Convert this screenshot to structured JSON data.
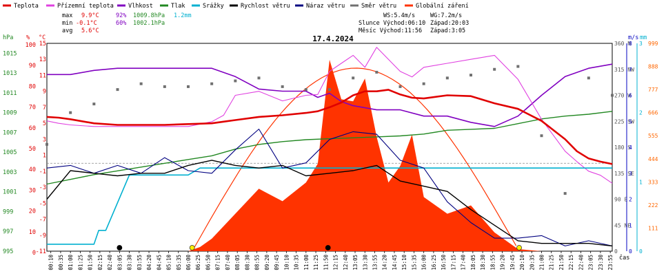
{
  "colors": {
    "temperature": "#e00000",
    "feels_like": "#e040e0",
    "humidity": "#8000c0",
    "pressure": "#228822",
    "rain": "#00b0d0",
    "wind_speed": "#000000",
    "wind_gust": "#000080",
    "wind_dir": "#707070",
    "radiation": "#ff3300",
    "axis_percent": "#e00000",
    "axis_hpa": "#228822",
    "axis_ms": "#0000c0",
    "axis_mm": "#00b0d0",
    "axis_wm2": "#ff6600"
  },
  "legend": [
    {
      "key": "temperature",
      "label": "Teplota"
    },
    {
      "key": "feels_like",
      "label": "Přízemní teplota"
    },
    {
      "key": "humidity",
      "label": "Vlhkost"
    },
    {
      "key": "pressure",
      "label": "Tlak"
    },
    {
      "key": "rain",
      "label": "Srážky"
    },
    {
      "key": "wind_speed",
      "label": "Rychlost větru"
    },
    {
      "key": "wind_gust",
      "label": "Náraz větru"
    },
    {
      "key": "wind_dir",
      "label": "Směr větru"
    },
    {
      "key": "radiation",
      "label": "Globální záření"
    }
  ],
  "stats": {
    "max_label": "max",
    "max_temp": "9.9°C",
    "max_hum": "92%",
    "max_press": "1009.8hPa",
    "rain_total": "1.2mm",
    "min_label": "min",
    "min_temp": "-0.1°C",
    "min_hum": "60%",
    "min_press": "1002.1hPa",
    "avg_label": "avg",
    "avg_temp": "5.6°C"
  },
  "sun": {
    "ws": "WS:5.4m/s",
    "wg": "WG:7.2m/s",
    "slunce": "Slunce Východ:06:10",
    "slunce_z": "Západ:20:03",
    "mesic": "Měsíc  Východ:11:56",
    "mesic_z": "Západ:3:05"
  },
  "chart_data": {
    "type": "line",
    "title": "17.4.2024",
    "x_label": "čas",
    "x_ticks": [
      "00:10",
      "00:35",
      "01:00",
      "01:25",
      "01:50",
      "02:15",
      "02:40",
      "03:05",
      "03:30",
      "03:55",
      "04:20",
      "04:45",
      "05:10",
      "05:35",
      "06:00",
      "06:25",
      "06:50",
      "07:15",
      "07:40",
      "08:05",
      "08:30",
      "08:55",
      "09:20",
      "09:45",
      "10:10",
      "10:35",
      "11:00",
      "11:25",
      "11:50",
      "12:15",
      "12:40",
      "13:05",
      "13:30",
      "13:55",
      "14:20",
      "14:45",
      "15:10",
      "15:35",
      "16:00",
      "16:25",
      "16:50",
      "17:15",
      "17:40",
      "18:05",
      "18:30",
      "18:55",
      "19:20",
      "19:45",
      "20:10",
      "20:35",
      "21:00",
      "21:25",
      "21:50",
      "22:15",
      "22:40",
      "23:05",
      "23:30",
      "23:55"
    ],
    "x_range_hours": [
      0,
      24
    ],
    "axes": {
      "hpa": {
        "label": "hPa",
        "range": [
          995,
          1017
        ],
        "ticks": [
          "995",
          "997",
          "999",
          "1001",
          "1003",
          "1005",
          "1007",
          "1009",
          "1011",
          "1013",
          "1015"
        ]
      },
      "percent": {
        "label": "%",
        "range": [
          0,
          100
        ],
        "ticks": [
          "0",
          "10",
          "20",
          "30",
          "40",
          "50",
          "60",
          "70",
          "80",
          "90",
          "100"
        ]
      },
      "celsius": {
        "label": "°C",
        "range": [
          -11,
          15
        ],
        "ticks": [
          "-11",
          "-9",
          "-7",
          "-5",
          "-3",
          "-1",
          "1",
          "3",
          "5",
          "7",
          "9",
          "11",
          "13",
          "15"
        ]
      },
      "wind_ms": {
        "label": "m/s",
        "range": [
          0,
          8
        ],
        "ticks": [
          "0",
          "1",
          "2",
          "3",
          "4",
          "5",
          "6",
          "7",
          "8"
        ]
      },
      "rain_mm": {
        "label": "mm",
        "range": [
          0,
          3
        ],
        "ticks": [
          "0",
          "1",
          "2",
          "3"
        ]
      },
      "wm2": {
        "label": "",
        "range": [
          0,
          999
        ],
        "ticks": [
          "111",
          "222",
          "333",
          "444",
          "555",
          "666",
          "777",
          "888",
          "999"
        ]
      },
      "wind_dir": {
        "ticks": [
          "0",
          "45 NE",
          "90 E",
          "135 SE",
          "180 S",
          "225 SW",
          "270 W",
          "315 NW",
          "360 N"
        ]
      }
    },
    "series": [
      {
        "name": "Teplota",
        "axis": "celsius",
        "x": [
          0,
          0.5,
          1,
          2,
          3,
          4,
          5,
          6,
          7,
          7.5,
          8,
          9,
          10,
          11,
          11.5,
          12,
          12.5,
          13,
          13.5,
          14,
          14.5,
          15,
          15.5,
          16,
          17,
          18,
          19,
          20,
          21,
          22,
          22.5,
          23,
          23.5,
          24
        ],
        "y": [
          5.8,
          5.7,
          5.5,
          5.0,
          4.8,
          4.8,
          4.8,
          4.9,
          5.0,
          5.2,
          5.4,
          5.8,
          6.0,
          6.3,
          6.5,
          7.0,
          7.6,
          8.5,
          9.0,
          9.0,
          9.2,
          8.6,
          8.2,
          8.1,
          8.5,
          8.4,
          7.5,
          6.8,
          5.3,
          3.0,
          1.5,
          0.6,
          0.2,
          -0.1
        ]
      },
      {
        "name": "Přízemní teplota",
        "axis": "celsius",
        "x": [
          0,
          0.5,
          1,
          2,
          3,
          4,
          5,
          6,
          7,
          7.5,
          8,
          9,
          10,
          11,
          11.5,
          12,
          12.5,
          13,
          13.5,
          14,
          14.5,
          15,
          15.5,
          16,
          17,
          18,
          19,
          20,
          21,
          22,
          22.5,
          23,
          23.5,
          24
        ],
        "y": [
          5.3,
          5.0,
          4.8,
          4.6,
          4.6,
          4.6,
          4.6,
          4.6,
          5.2,
          6.0,
          8.5,
          9.0,
          7.8,
          8.5,
          8.6,
          11.5,
          12.5,
          13.5,
          12.0,
          14.5,
          13.0,
          11.5,
          10.8,
          12.0,
          12.5,
          13.0,
          13.5,
          10.5,
          5.5,
          1.5,
          0.2,
          -1.0,
          -1.5,
          -2.5
        ]
      },
      {
        "name": "Vlhkost",
        "axis": "percent",
        "x": [
          0,
          1,
          2,
          3,
          4,
          5,
          6,
          7,
          8,
          9,
          10,
          11,
          11.5,
          12,
          12.5,
          13,
          14,
          14.5,
          15,
          16,
          17,
          18,
          19,
          20,
          21,
          22,
          23,
          24
        ],
        "y": [
          85,
          85,
          87,
          88,
          88,
          88,
          88,
          88,
          84,
          78,
          77,
          77,
          74,
          76,
          72,
          70,
          68,
          68,
          68,
          65,
          65,
          62,
          60,
          65,
          75,
          84,
          88,
          90
        ]
      },
      {
        "name": "Tlak",
        "axis": "hpa",
        "x": [
          0,
          1,
          2,
          3,
          4,
          5,
          6,
          7,
          8,
          9,
          10,
          11,
          12,
          13,
          14,
          15,
          16,
          17,
          18,
          19,
          20,
          21,
          22,
          23,
          24
        ],
        "y": [
          1002.1,
          1002.6,
          1003.1,
          1003.5,
          1003.9,
          1004.3,
          1004.7,
          1005.1,
          1005.8,
          1006.3,
          1006.6,
          1006.8,
          1006.9,
          1007.0,
          1007.1,
          1007.2,
          1007.4,
          1007.8,
          1007.9,
          1008.0,
          1008.5,
          1009.0,
          1009.3,
          1009.5,
          1009.8
        ]
      },
      {
        "name": "Srážky",
        "axis": "rain_mm",
        "x": [
          0,
          2,
          2.2,
          2.5,
          3.5,
          6,
          6.5,
          9.5,
          10,
          24
        ],
        "y": [
          0.1,
          0.1,
          0.3,
          0.3,
          1.1,
          1.1,
          1.2,
          1.2,
          1.2,
          1.2
        ]
      },
      {
        "name": "Rychlost větru",
        "axis": "wind_ms",
        "x": [
          0,
          1,
          2,
          3,
          4,
          5,
          6,
          7,
          8,
          9,
          10,
          11,
          12,
          13,
          14,
          15,
          16,
          17,
          18,
          19,
          20,
          21,
          22,
          23,
          24
        ],
        "y": [
          2.0,
          3.1,
          3.0,
          2.9,
          3.0,
          3.0,
          3.3,
          3.5,
          3.3,
          3.2,
          3.3,
          2.9,
          3.0,
          3.1,
          3.3,
          2.7,
          2.5,
          2.3,
          1.6,
          1.0,
          0.4,
          0.3,
          0.3,
          0.3,
          0.2
        ]
      },
      {
        "name": "Náraz větru",
        "axis": "wind_ms",
        "x": [
          0,
          1,
          2,
          3,
          4,
          5,
          6,
          7,
          8,
          9,
          10,
          11,
          12,
          13,
          14,
          15,
          16,
          17,
          18,
          19,
          20,
          21,
          22,
          23,
          24
        ],
        "y": [
          3.2,
          3.3,
          3.0,
          3.3,
          3.0,
          3.6,
          3.1,
          3.0,
          3.9,
          4.7,
          3.2,
          3.4,
          4.3,
          4.6,
          4.5,
          3.5,
          3.2,
          1.9,
          1.1,
          0.5,
          0.5,
          0.6,
          0.2,
          0.4,
          0.2
        ]
      },
      {
        "name": "Směr větru",
        "axis": "wind_dir",
        "x": [
          0,
          1,
          2,
          3,
          4,
          5,
          6,
          7,
          8,
          9,
          10,
          11,
          12,
          13,
          14,
          15,
          16,
          17,
          18,
          19,
          20,
          21,
          22,
          23,
          24
        ],
        "y": [
          185,
          240,
          255,
          280,
          290,
          285,
          285,
          290,
          295,
          300,
          285,
          280,
          280,
          300,
          310,
          285,
          290,
          300,
          305,
          315,
          320,
          200,
          100,
          300,
          270
        ]
      },
      {
        "name": "Globální záření",
        "axis": "wm2",
        "x": [
          0,
          6,
          6.5,
          7,
          8,
          9,
          10,
          11,
          11.5,
          12,
          12.5,
          13,
          13.5,
          14,
          14.5,
          15,
          15.5,
          16,
          17,
          18,
          19,
          20,
          21,
          24
        ],
        "y": [
          0,
          0,
          20,
          60,
          180,
          300,
          240,
          330,
          420,
          920,
          730,
          720,
          830,
          550,
          330,
          410,
          560,
          260,
          180,
          220,
          90,
          10,
          0,
          0
        ]
      }
    ]
  }
}
